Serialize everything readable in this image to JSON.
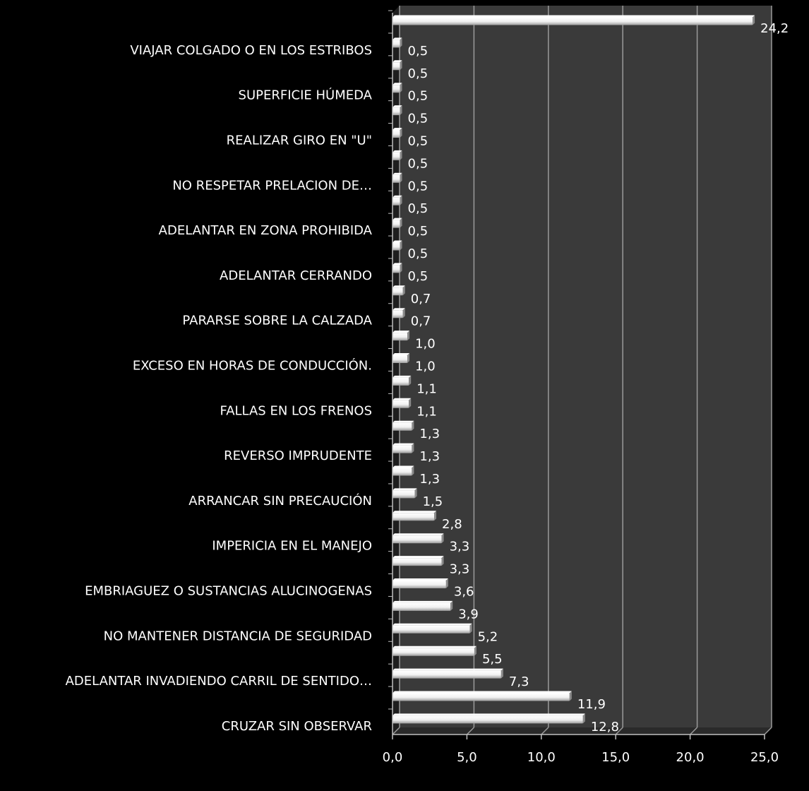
{
  "chart_data": {
    "type": "bar",
    "orientation": "horizontal",
    "title": "",
    "xlabel": "",
    "ylabel": "",
    "xlim": [
      0,
      25
    ],
    "x_ticks": [
      "0,0",
      "5,0",
      "10,0",
      "15,0",
      "20,0",
      "25,0"
    ],
    "grid": true,
    "legend": "none",
    "colors": {
      "background": "#000000",
      "plot_area": "#3a3a3a",
      "bar": "#f2f2f2",
      "text": "#ffffff",
      "grid": "#9a9a9a"
    },
    "bars": [
      {
        "category": "",
        "value": 24.2,
        "label": "24,2"
      },
      {
        "category": "VIAJAR COLGADO O EN LOS ESTRIBOS",
        "value": 0.5,
        "label": "0,5"
      },
      {
        "category": "",
        "value": 0.5,
        "label": "0,5"
      },
      {
        "category": "SUPERFICIE HÚMEDA",
        "value": 0.5,
        "label": "0,5"
      },
      {
        "category": "",
        "value": 0.5,
        "label": "0,5"
      },
      {
        "category": "REALIZAR GIRO EN \"U\"",
        "value": 0.5,
        "label": "0,5"
      },
      {
        "category": "",
        "value": 0.5,
        "label": "0,5"
      },
      {
        "category": "NO RESPETAR PRELACION DE…",
        "value": 0.5,
        "label": "0,5"
      },
      {
        "category": "",
        "value": 0.5,
        "label": "0,5"
      },
      {
        "category": "ADELANTAR EN ZONA PROHIBIDA",
        "value": 0.5,
        "label": "0,5"
      },
      {
        "category": "",
        "value": 0.5,
        "label": "0,5"
      },
      {
        "category": "ADELANTAR CERRANDO",
        "value": 0.5,
        "label": "0,5"
      },
      {
        "category": "",
        "value": 0.7,
        "label": "0,7"
      },
      {
        "category": "PARARSE SOBRE LA CALZADA",
        "value": 0.7,
        "label": "0,7"
      },
      {
        "category": "",
        "value": 1.0,
        "label": "1,0"
      },
      {
        "category": "EXCESO EN HORAS DE CONDUCCIÓN.",
        "value": 1.0,
        "label": "1,0"
      },
      {
        "category": "",
        "value": 1.1,
        "label": "1,1"
      },
      {
        "category": "FALLAS EN LOS FRENOS",
        "value": 1.1,
        "label": "1,1"
      },
      {
        "category": "",
        "value": 1.3,
        "label": "1,3"
      },
      {
        "category": "REVERSO IMPRUDENTE",
        "value": 1.3,
        "label": "1,3"
      },
      {
        "category": "",
        "value": 1.3,
        "label": "1,3"
      },
      {
        "category": "ARRANCAR SIN PRECAUCIÓN",
        "value": 1.5,
        "label": "1,5"
      },
      {
        "category": "",
        "value": 2.8,
        "label": "2,8"
      },
      {
        "category": "IMPERICIA EN EL MANEJO",
        "value": 3.3,
        "label": "3,3"
      },
      {
        "category": "",
        "value": 3.3,
        "label": "3,3"
      },
      {
        "category": "EMBRIAGUEZ O SUSTANCIAS ALUCINOGENAS",
        "value": 3.6,
        "label": "3,6"
      },
      {
        "category": "",
        "value": 3.9,
        "label": "3,9"
      },
      {
        "category": "NO MANTENER DISTANCIA DE SEGURIDAD",
        "value": 5.2,
        "label": "5,2"
      },
      {
        "category": "",
        "value": 5.5,
        "label": "5,5"
      },
      {
        "category": "ADELANTAR INVADIENDO CARRIL DE SENTIDO…",
        "value": 7.3,
        "label": "7,3"
      },
      {
        "category": "",
        "value": 11.9,
        "label": "11,9"
      },
      {
        "category": "CRUZAR SIN OBSERVAR",
        "value": 12.8,
        "label": "12,8"
      }
    ]
  }
}
